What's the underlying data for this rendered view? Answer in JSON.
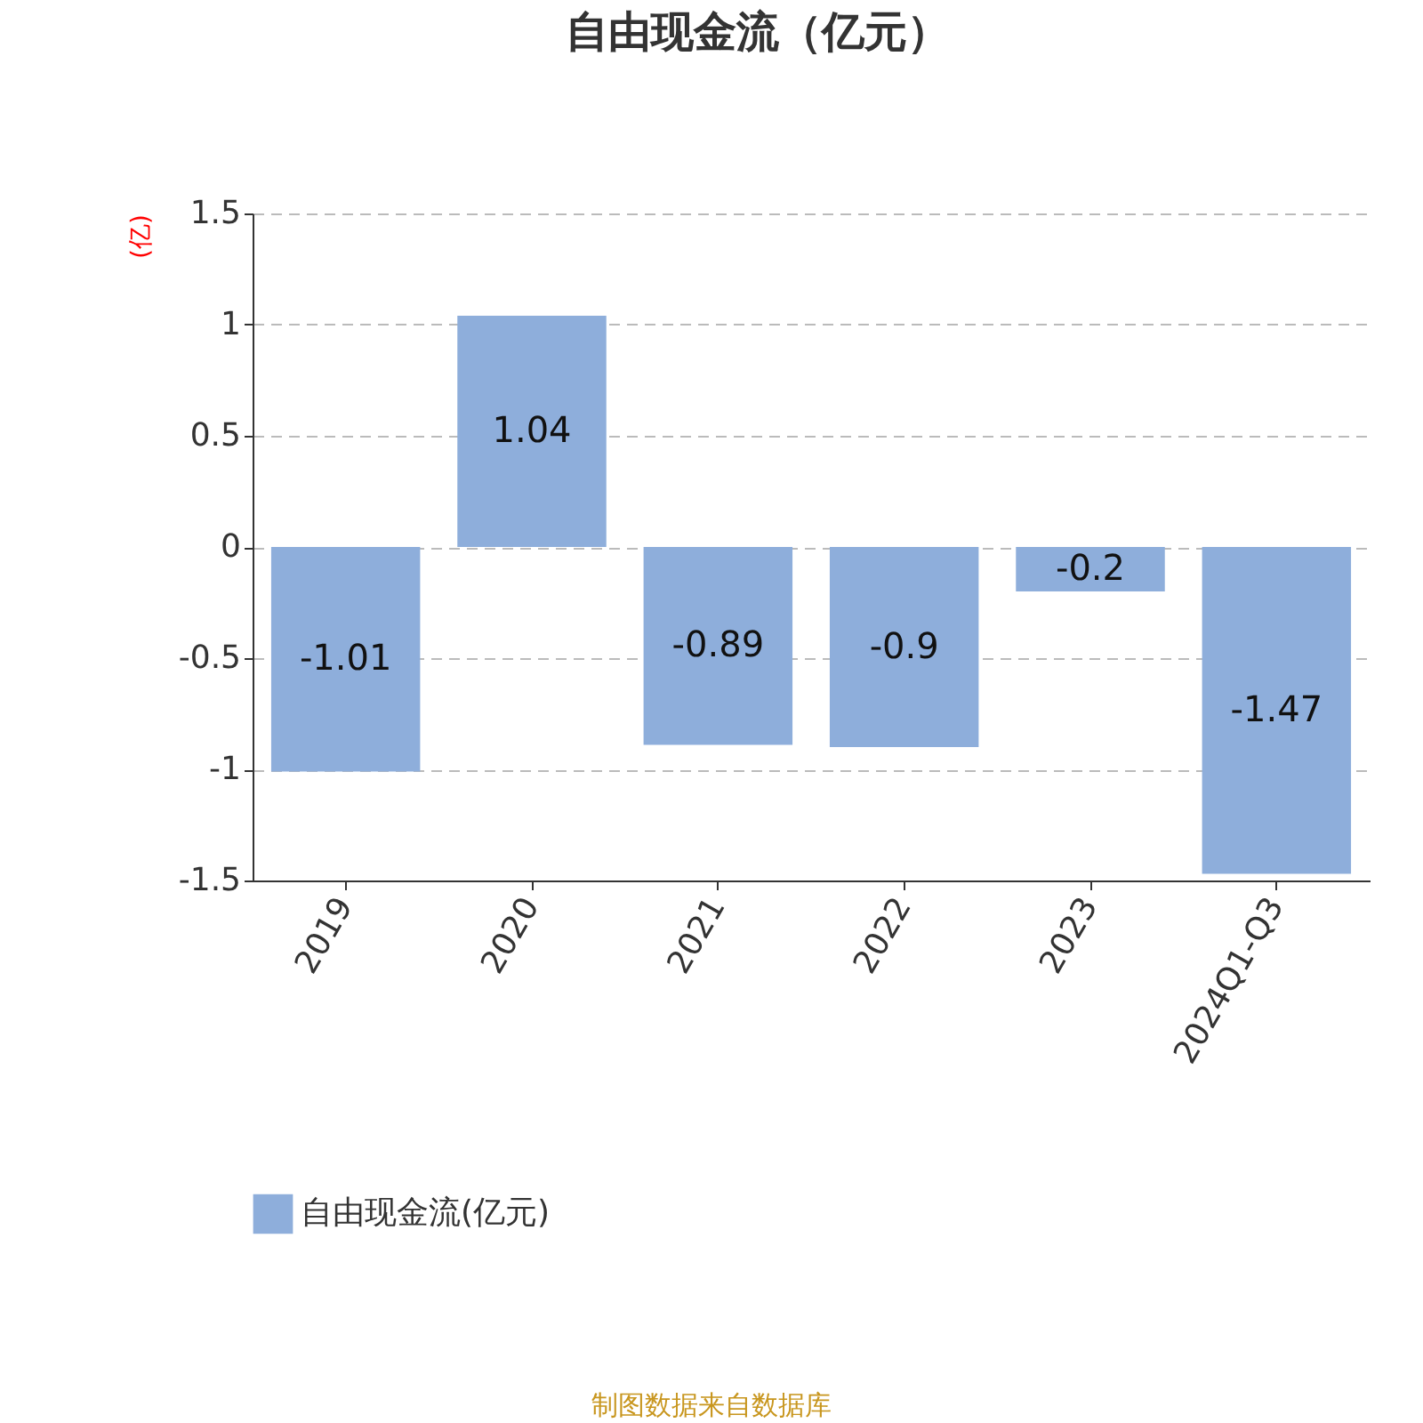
{
  "chart_data": {
    "type": "bar",
    "title": "自由现金流（亿元）",
    "ylabel": "(亿)",
    "categories": [
      "2019",
      "2020",
      "2021",
      "2022",
      "2023",
      "2024Q1-Q3"
    ],
    "series": [
      {
        "name": "自由现金流(亿元)",
        "color": "#8eaedb",
        "values": [
          -1.01,
          1.04,
          -0.89,
          -0.9,
          -0.2,
          -1.47
        ]
      }
    ],
    "ylim": [
      -1.5,
      1.5
    ],
    "yticks": [
      -1.5,
      -1,
      -0.5,
      0,
      0.5,
      1,
      1.5
    ],
    "grid": "y",
    "legend": "bottom",
    "data_labels": true,
    "annotations": [
      "制图数据来自数据库"
    ]
  }
}
